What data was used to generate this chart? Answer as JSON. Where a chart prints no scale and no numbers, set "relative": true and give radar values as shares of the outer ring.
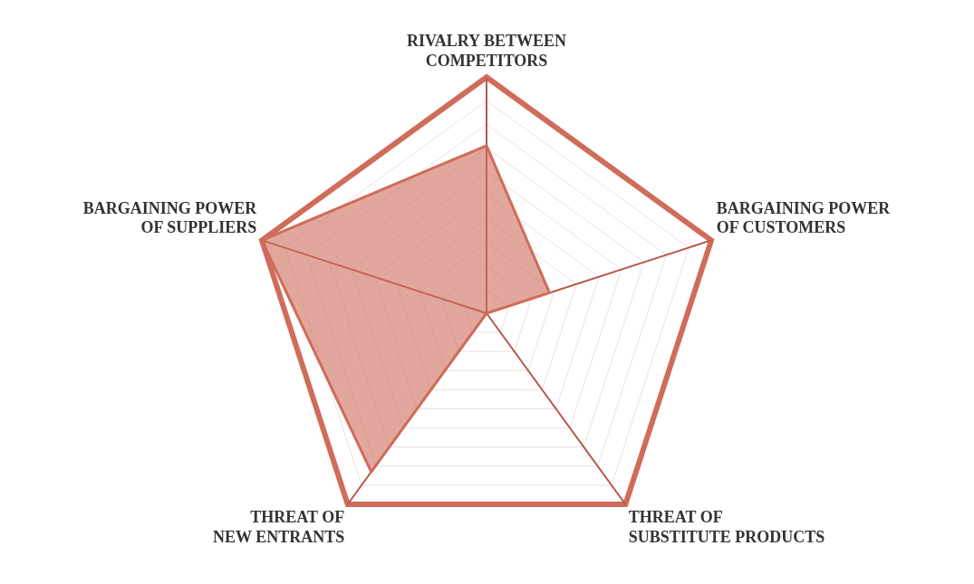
{
  "chart_data": {
    "type": "radar",
    "relative": true,
    "categories": [
      "RIVALRY BETWEEN COMPETITORS",
      "BARGAINING POWER OF CUSTOMERS",
      "THREAT OF SUBSTITUTE PRODUCTS",
      "THREAT OF NEW ENTRANTS",
      "BARGAINING POWER OF SUPPLIERS"
    ],
    "series": [
      {
        "color": "#cf6c5a",
        "values": [
          0.71,
          0.28,
          0,
          0.83,
          1
        ]
      }
    ],
    "grid": true,
    "legend": false,
    "marker": "none"
  }
}
